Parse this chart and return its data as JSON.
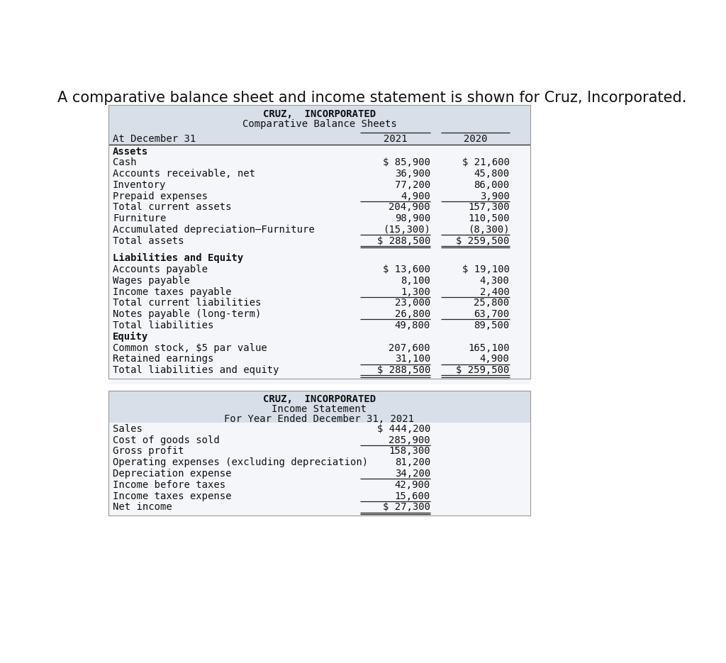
{
  "title_text": "A comparative balance sheet and income statement is shown for Cruz, Incorporated.",
  "bg_color": "#ffffff",
  "table_bg": "#d8dfe8",
  "body_bg": "#f4f6f9",
  "bs_title1": "CRUZ,  INCORPORATED",
  "bs_title2": "Comparative Balance Sheets",
  "bs_col1": "At December 31",
  "bs_col2": "2021",
  "bs_col3": "2020",
  "bs_rows": [
    {
      "label": "Assets",
      "v2021": "",
      "v2020": "",
      "bold": true,
      "line_after": false,
      "dbl_after": false,
      "spacer": false
    },
    {
      "label": "Cash",
      "v2021": "$ 85,900",
      "v2020": "$ 21,600",
      "bold": false,
      "line_after": false,
      "dbl_after": false,
      "spacer": false
    },
    {
      "label": "Accounts receivable, net",
      "v2021": "36,900",
      "v2020": "45,800",
      "bold": false,
      "line_after": false,
      "dbl_after": false,
      "spacer": false
    },
    {
      "label": "Inventory",
      "v2021": "77,200",
      "v2020": "86,000",
      "bold": false,
      "line_after": false,
      "dbl_after": false,
      "spacer": false
    },
    {
      "label": "Prepaid expenses",
      "v2021": "4,900",
      "v2020": "3,900",
      "bold": false,
      "line_after": true,
      "dbl_after": false,
      "spacer": false
    },
    {
      "label": "Total current assets",
      "v2021": "204,900",
      "v2020": "157,300",
      "bold": false,
      "line_after": false,
      "dbl_after": false,
      "spacer": false
    },
    {
      "label": "Furniture",
      "v2021": "98,900",
      "v2020": "110,500",
      "bold": false,
      "line_after": false,
      "dbl_after": false,
      "spacer": false
    },
    {
      "label": "Accumulated depreciation–Furniture",
      "v2021": "(15,300)",
      "v2020": "(8,300)",
      "bold": false,
      "line_after": true,
      "dbl_after": false,
      "spacer": false
    },
    {
      "label": "Total assets",
      "v2021": "$ 288,500",
      "v2020": "$ 259,500",
      "bold": false,
      "line_after": false,
      "dbl_after": true,
      "spacer": false
    },
    {
      "label": "",
      "v2021": "",
      "v2020": "",
      "bold": false,
      "line_after": false,
      "dbl_after": false,
      "spacer": true
    },
    {
      "label": "Liabilities and Equity",
      "v2021": "",
      "v2020": "",
      "bold": true,
      "line_after": false,
      "dbl_after": false,
      "spacer": false
    },
    {
      "label": "Accounts payable",
      "v2021": "$ 13,600",
      "v2020": "$ 19,100",
      "bold": false,
      "line_after": false,
      "dbl_after": false,
      "spacer": false
    },
    {
      "label": "Wages payable",
      "v2021": "8,100",
      "v2020": "4,300",
      "bold": false,
      "line_after": false,
      "dbl_after": false,
      "spacer": false
    },
    {
      "label": "Income taxes payable",
      "v2021": "1,300",
      "v2020": "2,400",
      "bold": false,
      "line_after": true,
      "dbl_after": false,
      "spacer": false
    },
    {
      "label": "Total current liabilities",
      "v2021": "23,000",
      "v2020": "25,800",
      "bold": false,
      "line_after": false,
      "dbl_after": false,
      "spacer": false
    },
    {
      "label": "Notes payable (long-term)",
      "v2021": "26,800",
      "v2020": "63,700",
      "bold": false,
      "line_after": true,
      "dbl_after": false,
      "spacer": false
    },
    {
      "label": "Total liabilities",
      "v2021": "49,800",
      "v2020": "89,500",
      "bold": false,
      "line_after": false,
      "dbl_after": false,
      "spacer": false
    },
    {
      "label": "Equity",
      "v2021": "",
      "v2020": "",
      "bold": true,
      "line_after": false,
      "dbl_after": false,
      "spacer": false
    },
    {
      "label": "Common stock, $5 par value",
      "v2021": "207,600",
      "v2020": "165,100",
      "bold": false,
      "line_after": false,
      "dbl_after": false,
      "spacer": false
    },
    {
      "label": "Retained earnings",
      "v2021": "31,100",
      "v2020": "4,900",
      "bold": false,
      "line_after": true,
      "dbl_after": false,
      "spacer": false
    },
    {
      "label": "Total liabilities and equity",
      "v2021": "$ 288,500",
      "v2020": "$ 259,500",
      "bold": false,
      "line_after": false,
      "dbl_after": true,
      "spacer": false
    }
  ],
  "is_title1": "CRUZ,  INCORPORATED",
  "is_title2": "Income Statement",
  "is_title3": "For Year Ended December 31, 2021",
  "is_rows": [
    {
      "label": "Sales",
      "value": "$ 444,200",
      "bold": false,
      "line_after": false,
      "dbl_after": false
    },
    {
      "label": "Cost of goods sold",
      "value": "285,900",
      "bold": false,
      "line_after": true,
      "dbl_after": false
    },
    {
      "label": "Gross profit",
      "value": "158,300",
      "bold": false,
      "line_after": false,
      "dbl_after": false
    },
    {
      "label": "Operating expenses (excluding depreciation)",
      "value": "81,200",
      "bold": false,
      "line_after": false,
      "dbl_after": false
    },
    {
      "label": "Depreciation expense",
      "value": "34,200",
      "bold": false,
      "line_after": true,
      "dbl_after": false
    },
    {
      "label": "Income before taxes",
      "value": "42,900",
      "bold": false,
      "line_after": false,
      "dbl_after": false
    },
    {
      "label": "Income taxes expense",
      "value": "15,600",
      "bold": false,
      "line_after": true,
      "dbl_after": false
    },
    {
      "label": "Net income",
      "value": "$ 27,300",
      "bold": false,
      "line_after": false,
      "dbl_after": true
    }
  ]
}
